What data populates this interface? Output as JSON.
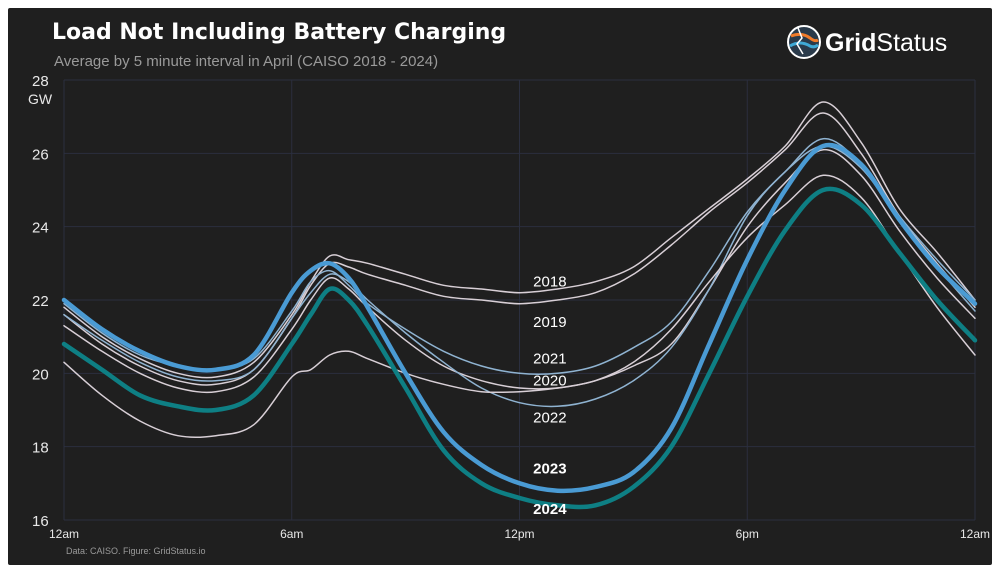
{
  "header": {
    "title": "Load Not Including Battery Charging",
    "subtitle": "Average by 5 minute interval in April (CAISO 2018 - 2024)"
  },
  "logo": {
    "brand_bold": "Grid",
    "brand_regular": "Status",
    "icon": "gridstatus-logo-icon"
  },
  "footer": {
    "source": "Data: CAISO. Figure: GridStatus.io"
  },
  "colors": {
    "background": "#1f1f1f",
    "grid": "#2b2f3f",
    "light_series": "#d8cfd6",
    "mid_series": "#8fb3d1",
    "series_2023": "#4a9bd4",
    "series_2024": "#0e7f84"
  },
  "chart_data": {
    "type": "line",
    "title": "Load Not Including Battery Charging",
    "subtitle": "Average by 5 minute interval in April (CAISO 2018 - 2024)",
    "xlabel": "",
    "ylabel": "GW",
    "xlim": [
      0,
      24
    ],
    "ylim": [
      16,
      28
    ],
    "x_ticks": [
      {
        "x": 0,
        "label": "12am"
      },
      {
        "x": 6,
        "label": "6am"
      },
      {
        "x": 12,
        "label": "12pm"
      },
      {
        "x": 18,
        "label": "6pm"
      },
      {
        "x": 24,
        "label": "12am"
      }
    ],
    "y_ticks": [
      16,
      18,
      20,
      22,
      24,
      26,
      28
    ],
    "grid": true,
    "legend": "direct labels",
    "x": [
      0,
      1,
      2,
      3,
      4,
      5,
      6,
      6.5,
      7,
      7.5,
      8,
      9,
      10,
      11,
      12,
      13,
      14,
      15,
      16,
      17,
      18,
      19,
      20,
      21,
      22,
      23,
      24
    ],
    "series": [
      {
        "name": "2018",
        "color": "#d8cfd6",
        "width": 1.5,
        "values": [
          21.8,
          21.0,
          20.4,
          20.0,
          19.9,
          20.3,
          21.6,
          22.5,
          23.2,
          23.1,
          23.0,
          22.7,
          22.4,
          22.3,
          22.2,
          22.3,
          22.5,
          22.9,
          23.7,
          24.5,
          25.3,
          26.2,
          27.4,
          26.3,
          24.5,
          23.3,
          22.0
        ]
      },
      {
        "name": "2019",
        "color": "#d8cfd6",
        "width": 1.5,
        "values": [
          21.6,
          20.8,
          20.2,
          19.8,
          19.7,
          20.1,
          21.5,
          22.4,
          23.0,
          22.9,
          22.7,
          22.4,
          22.1,
          22.0,
          21.9,
          22.0,
          22.2,
          22.7,
          23.5,
          24.4,
          25.2,
          26.1,
          27.1,
          26.0,
          24.3,
          23.0,
          21.8
        ]
      },
      {
        "name": "2021",
        "color": "#8fb3d1",
        "width": 1.5,
        "values": [
          21.9,
          21.1,
          20.5,
          20.2,
          20.1,
          20.4,
          21.7,
          22.5,
          22.8,
          22.4,
          21.9,
          21.2,
          20.6,
          20.2,
          20.0,
          20.0,
          20.2,
          20.7,
          21.4,
          22.8,
          24.4,
          25.5,
          26.4,
          25.7,
          24.3,
          23.1,
          22.0
        ]
      },
      {
        "name": "2020",
        "color": "#d8cfd6",
        "width": 1.5,
        "values": [
          21.3,
          20.6,
          20.0,
          19.6,
          19.5,
          19.9,
          21.2,
          22.0,
          22.6,
          22.3,
          21.8,
          20.9,
          20.2,
          19.8,
          19.6,
          19.6,
          19.8,
          20.2,
          20.8,
          22.3,
          24.0,
          25.2,
          26.1,
          25.4,
          23.9,
          22.6,
          21.5
        ]
      },
      {
        "name": "2022",
        "color": "#8fb3d1",
        "width": 1.5,
        "values": [
          21.6,
          20.9,
          20.3,
          19.9,
          19.8,
          20.1,
          21.5,
          22.2,
          22.7,
          22.5,
          22.0,
          21.1,
          20.3,
          19.6,
          19.2,
          19.1,
          19.3,
          19.8,
          20.7,
          22.3,
          24.3,
          25.5,
          26.2,
          25.6,
          24.2,
          22.9,
          21.7
        ]
      },
      {
        "name": "",
        "color": "#d8cfd6",
        "width": 1.5,
        "values": [
          20.3,
          19.4,
          18.7,
          18.3,
          18.3,
          18.6,
          19.9,
          20.1,
          20.5,
          20.6,
          20.4,
          20.0,
          19.7,
          19.5,
          19.5,
          19.6,
          19.8,
          20.3,
          21.2,
          22.5,
          23.7,
          24.6,
          25.4,
          24.8,
          23.3,
          21.8,
          20.5
        ]
      },
      {
        "name": "2023",
        "color": "#4a9bd4",
        "width": 4.5,
        "values": [
          22.0,
          21.2,
          20.6,
          20.2,
          20.1,
          20.5,
          22.2,
          22.8,
          23.0,
          22.6,
          21.8,
          20.0,
          18.4,
          17.5,
          17.0,
          16.8,
          16.9,
          17.3,
          18.5,
          20.8,
          23.1,
          25.0,
          26.2,
          25.7,
          24.2,
          22.9,
          21.9
        ]
      },
      {
        "name": "2024",
        "color": "#0e7f84",
        "width": 4.5,
        "values": [
          20.8,
          20.1,
          19.4,
          19.1,
          19.0,
          19.4,
          20.8,
          21.6,
          22.3,
          22.0,
          21.3,
          19.6,
          17.9,
          17.0,
          16.6,
          16.4,
          16.4,
          16.9,
          18.0,
          20.0,
          22.1,
          23.9,
          25.0,
          24.6,
          23.3,
          22.0,
          20.9
        ]
      }
    ],
    "labels": [
      {
        "text": "2018",
        "x": 12.8,
        "y": 22.5,
        "bold": false
      },
      {
        "text": "2019",
        "x": 12.8,
        "y": 21.4,
        "bold": false
      },
      {
        "text": "2021",
        "x": 12.8,
        "y": 20.4,
        "bold": false
      },
      {
        "text": "2020",
        "x": 12.8,
        "y": 19.8,
        "bold": false
      },
      {
        "text": "2022",
        "x": 12.8,
        "y": 18.8,
        "bold": false
      },
      {
        "text": "2023",
        "x": 12.8,
        "y": 17.4,
        "bold": true
      },
      {
        "text": "2024",
        "x": 12.8,
        "y": 16.3,
        "bold": true
      }
    ]
  }
}
